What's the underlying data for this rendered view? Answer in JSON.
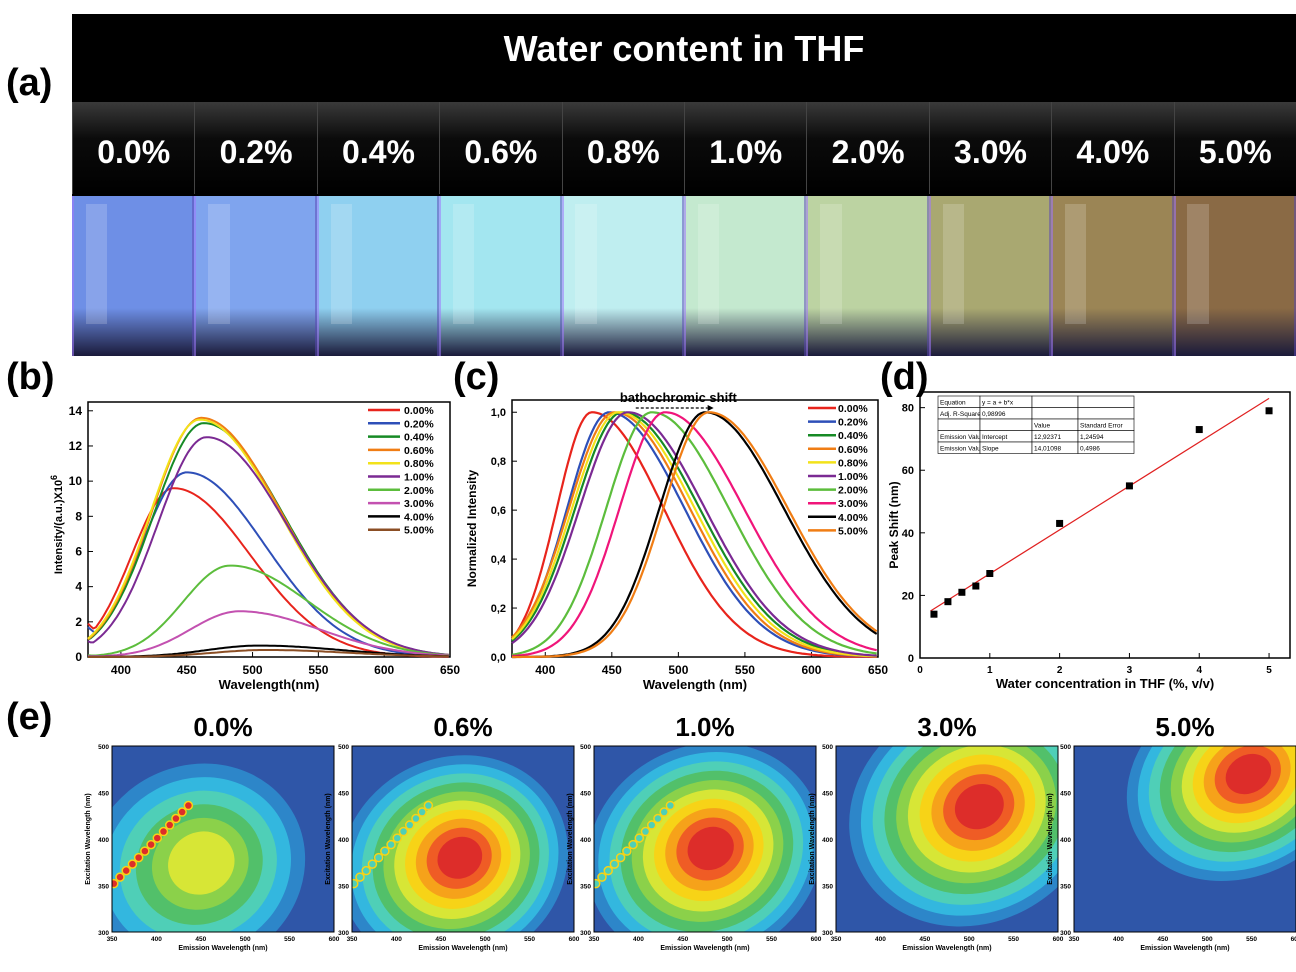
{
  "panel_labels": {
    "a": "(a)",
    "b": "(b)",
    "c": "(c)",
    "d": "(d)",
    "e": "(e)"
  },
  "photo": {
    "banner": "Water content in THF",
    "vial_labels": [
      "0.0%",
      "0.2%",
      "0.4%",
      "0.6%",
      "0.8%",
      "1.0%",
      "2.0%",
      "3.0%",
      "4.0%",
      "5.0%"
    ],
    "vial_colors": [
      "#6e8fe6",
      "#7fa4ee",
      "#8fd0f0",
      "#a3e6f0",
      "#bfeef0",
      "#c4e9cf",
      "#bcd3a2",
      "#a9a871",
      "#9b8555",
      "#8a6a45"
    ]
  },
  "chart_data": [
    {
      "type": "line",
      "xlabel": "Wavelength(nm)",
      "ylabel": "Intensity/(a.u.)X10",
      "ylabel_exp": "6",
      "xlim": [
        375,
        650
      ],
      "ylim": [
        0,
        14.5
      ],
      "xticks": [
        400,
        450,
        500,
        550,
        600,
        650
      ],
      "yticks": [
        0,
        2,
        4,
        6,
        8,
        10,
        12,
        14
      ],
      "series": [
        {
          "name": "0.00%",
          "color": "#e8241c",
          "peak_x": 440,
          "peak_y": 9.6,
          "width_left": 48,
          "width_right": 88,
          "start_y": 1.9,
          "end_y": 0.3
        },
        {
          "name": "0.20%",
          "color": "#2e4fb8",
          "peak_x": 450,
          "peak_y": 10.5,
          "width_left": 52,
          "width_right": 90,
          "start_y": 1.7,
          "end_y": 0.4
        },
        {
          "name": "0.40%",
          "color": "#168a25",
          "peak_x": 463,
          "peak_y": 13.3,
          "width_left": 58,
          "width_right": 92,
          "start_y": 1.0,
          "end_y": 0.7
        },
        {
          "name": "0.60%",
          "color": "#f07d14",
          "peak_x": 461,
          "peak_y": 13.6,
          "width_left": 57,
          "width_right": 92,
          "start_y": 1.0,
          "end_y": 0.7
        },
        {
          "name": "0.80%",
          "color": "#f2e21a",
          "peak_x": 460,
          "peak_y": 13.5,
          "width_left": 57,
          "width_right": 92,
          "start_y": 1.0,
          "end_y": 0.7
        },
        {
          "name": "1.00%",
          "color": "#7b2a93",
          "peak_x": 465,
          "peak_y": 12.5,
          "width_left": 56,
          "width_right": 92,
          "start_y": 0.9,
          "end_y": 0.8
        },
        {
          "name": "2.00%",
          "color": "#5cbd3c",
          "peak_x": 483,
          "peak_y": 5.2,
          "width_left": 54,
          "width_right": 90,
          "start_y": 0.1,
          "end_y": 0.4
        },
        {
          "name": "3.00%",
          "color": "#c351b0",
          "peak_x": 490,
          "peak_y": 2.6,
          "width_left": 56,
          "width_right": 92,
          "start_y": 0.05,
          "end_y": 0.3
        },
        {
          "name": "4.00%",
          "color": "#000000",
          "peak_x": 505,
          "peak_y": 0.65,
          "width_left": 60,
          "width_right": 95,
          "start_y": 0.0,
          "end_y": 0.1
        },
        {
          "name": "5.00%",
          "color": "#8b4e24",
          "peak_x": 510,
          "peak_y": 0.4,
          "width_left": 60,
          "width_right": 95,
          "start_y": 0.0,
          "end_y": 0.05
        }
      ]
    },
    {
      "type": "line",
      "xlabel": "Wavelength (nm)",
      "ylabel": "Normalized Intensity",
      "annotation": "bathochromic  shift",
      "xlim": [
        375,
        650
      ],
      "ylim": [
        0,
        1.05
      ],
      "xticks": [
        400,
        450,
        500,
        550,
        600,
        650
      ],
      "yticks": [
        "0,0",
        "0,2",
        "0,4",
        "0,6",
        "0,8",
        "1,0"
      ],
      "series": [
        {
          "name": "0.00%",
          "color": "#e8241c",
          "peak_x": 435,
          "width_left": 40,
          "width_right": 82
        },
        {
          "name": "0.20%",
          "color": "#2e4fb8",
          "peak_x": 448,
          "width_left": 48,
          "width_right": 86
        },
        {
          "name": "0.40%",
          "color": "#168a25",
          "peak_x": 458,
          "width_left": 54,
          "width_right": 88
        },
        {
          "name": "0.60%",
          "color": "#f07d14",
          "peak_x": 452,
          "width_left": 52,
          "width_right": 86
        },
        {
          "name": "0.80%",
          "color": "#f2e21a",
          "peak_x": 455,
          "width_left": 53,
          "width_right": 87
        },
        {
          "name": "1.00%",
          "color": "#7b2a93",
          "peak_x": 462,
          "width_left": 55,
          "width_right": 88
        },
        {
          "name": "2.00%",
          "color": "#5cbd3c",
          "peak_x": 480,
          "width_left": 52,
          "width_right": 88
        },
        {
          "name": "3.00%",
          "color": "#f0157a",
          "peak_x": 490,
          "width_left": 52,
          "width_right": 90
        },
        {
          "name": "4.00%",
          "color": "#000000",
          "peak_x": 520,
          "width_left": 52,
          "width_right": 90
        },
        {
          "name": "5.00%",
          "color": "#f07d14",
          "peak_x": 523,
          "width_left": 52,
          "width_right": 90
        }
      ]
    },
    {
      "type": "scatter",
      "xlabel": "Water concentration in THF (%, v/v)",
      "ylabel": "Peak Shift (nm)",
      "xlim": [
        0,
        5.3
      ],
      "ylim": [
        0,
        85
      ],
      "xticks": [
        0,
        1,
        2,
        3,
        4,
        5
      ],
      "yticks": [
        0,
        20,
        40,
        60,
        80
      ],
      "x": [
        0.2,
        0.4,
        0.6,
        0.8,
        1.0,
        2.0,
        3.0,
        4.0,
        5.0
      ],
      "y": [
        14,
        18,
        21,
        23,
        27,
        43,
        55,
        73,
        79
      ],
      "fit": {
        "intercept": 12.92371,
        "slope": 14.01098
      },
      "fit_table": {
        "rows": [
          [
            "Equation",
            "y = a + b*x",
            "",
            ""
          ],
          [
            "Adj. R-Square",
            "0,98996",
            "",
            ""
          ],
          [
            "",
            "",
            "Value",
            "Standard Error"
          ],
          [
            "Emission Value",
            "Intercept",
            "12,92371",
            "1,24594"
          ],
          [
            "Emission Value",
            "Slope",
            "14,01098",
            "0,4986"
          ]
        ]
      }
    },
    {
      "type": "heatmap",
      "xlabel": "Emission Wavelength (nm)",
      "ylabel": "Excitation Wavelength (nm)",
      "xticks": [
        350,
        400,
        450,
        500,
        550,
        600
      ],
      "yticks": [
        300,
        350,
        400,
        450,
        500
      ],
      "palette": [
        "#2f56a8",
        "#2d86c9",
        "#33b7df",
        "#4fcfb7",
        "#52c06a",
        "#8bd14a",
        "#d7e636",
        "#f7d317",
        "#f6a21a",
        "#ef5c25",
        "#dd2d2a"
      ],
      "panels": [
        {
          "title": "0.0%",
          "em": 445,
          "ex": 370,
          "rx": 78,
          "ry": 68,
          "max_level": 6,
          "rayleigh": true
        },
        {
          "title": "0.6%",
          "em": 465,
          "ex": 375,
          "rx": 82,
          "ry": 70,
          "max_level": 10,
          "rayleigh": true
        },
        {
          "title": "1.0%",
          "em": 475,
          "ex": 385,
          "rx": 85,
          "ry": 72,
          "max_level": 10,
          "rayleigh": true
        },
        {
          "title": "3.0%",
          "em": 505,
          "ex": 430,
          "rx": 90,
          "ry": 75,
          "max_level": 10,
          "rayleigh": false
        },
        {
          "title": "5.0%",
          "em": 540,
          "ex": 465,
          "rx": 85,
          "ry": 65,
          "max_level": 10,
          "rayleigh": false
        }
      ]
    }
  ]
}
